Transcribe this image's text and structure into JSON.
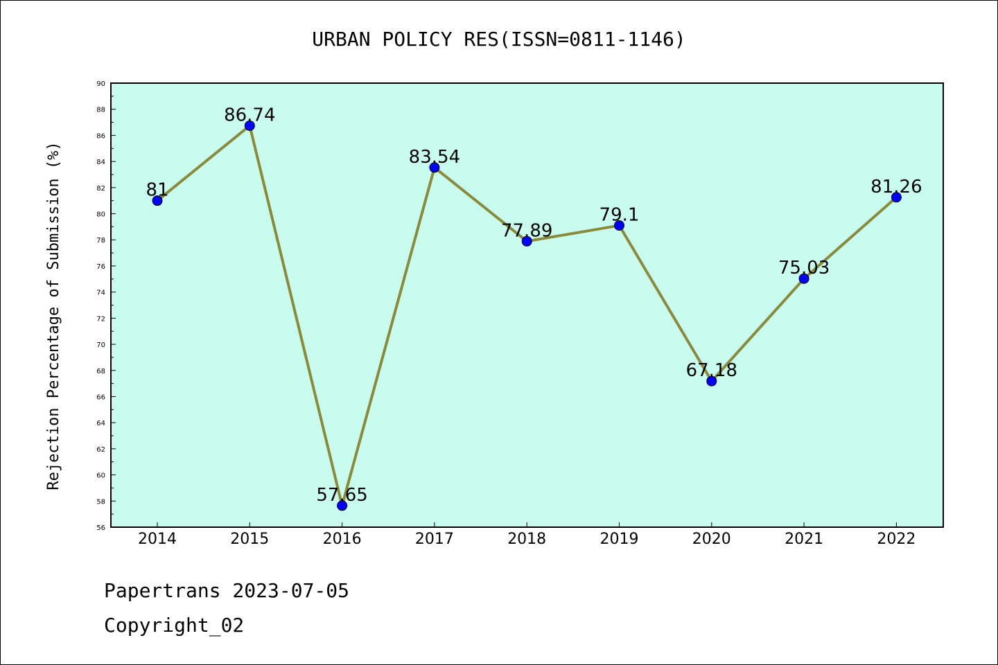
{
  "chart_data": {
    "type": "line",
    "title": "URBAN POLICY RES(ISSN=0811-1146)",
    "xlabel": "",
    "ylabel": "Rejection Percentage of Submission (%)",
    "categories": [
      "2014",
      "2015",
      "2016",
      "2017",
      "2018",
      "2019",
      "2020",
      "2021",
      "2022"
    ],
    "values": [
      81,
      86.74,
      57.65,
      83.54,
      77.89,
      79.1,
      67.18,
      75.03,
      81.26
    ],
    "value_labels": [
      "81",
      "86.74",
      "57.65",
      "83.54",
      "77.89",
      "79.1",
      "67.18",
      "75.03",
      "81.26"
    ],
    "ylim": [
      56,
      90
    ],
    "yticks": [
      "56",
      "58",
      "60",
      "62",
      "64",
      "66",
      "68",
      "70",
      "72",
      "74",
      "76",
      "78",
      "80",
      "82",
      "84",
      "86",
      "88",
      "90"
    ],
    "grid": false,
    "legend": "none",
    "colors": {
      "plot_background": "#c8fcee",
      "line": "#8b8a3a",
      "marker": "#0000ff"
    }
  },
  "footer": {
    "line1": "Papertrans 2023-07-05",
    "line2": "Copyright_02"
  }
}
